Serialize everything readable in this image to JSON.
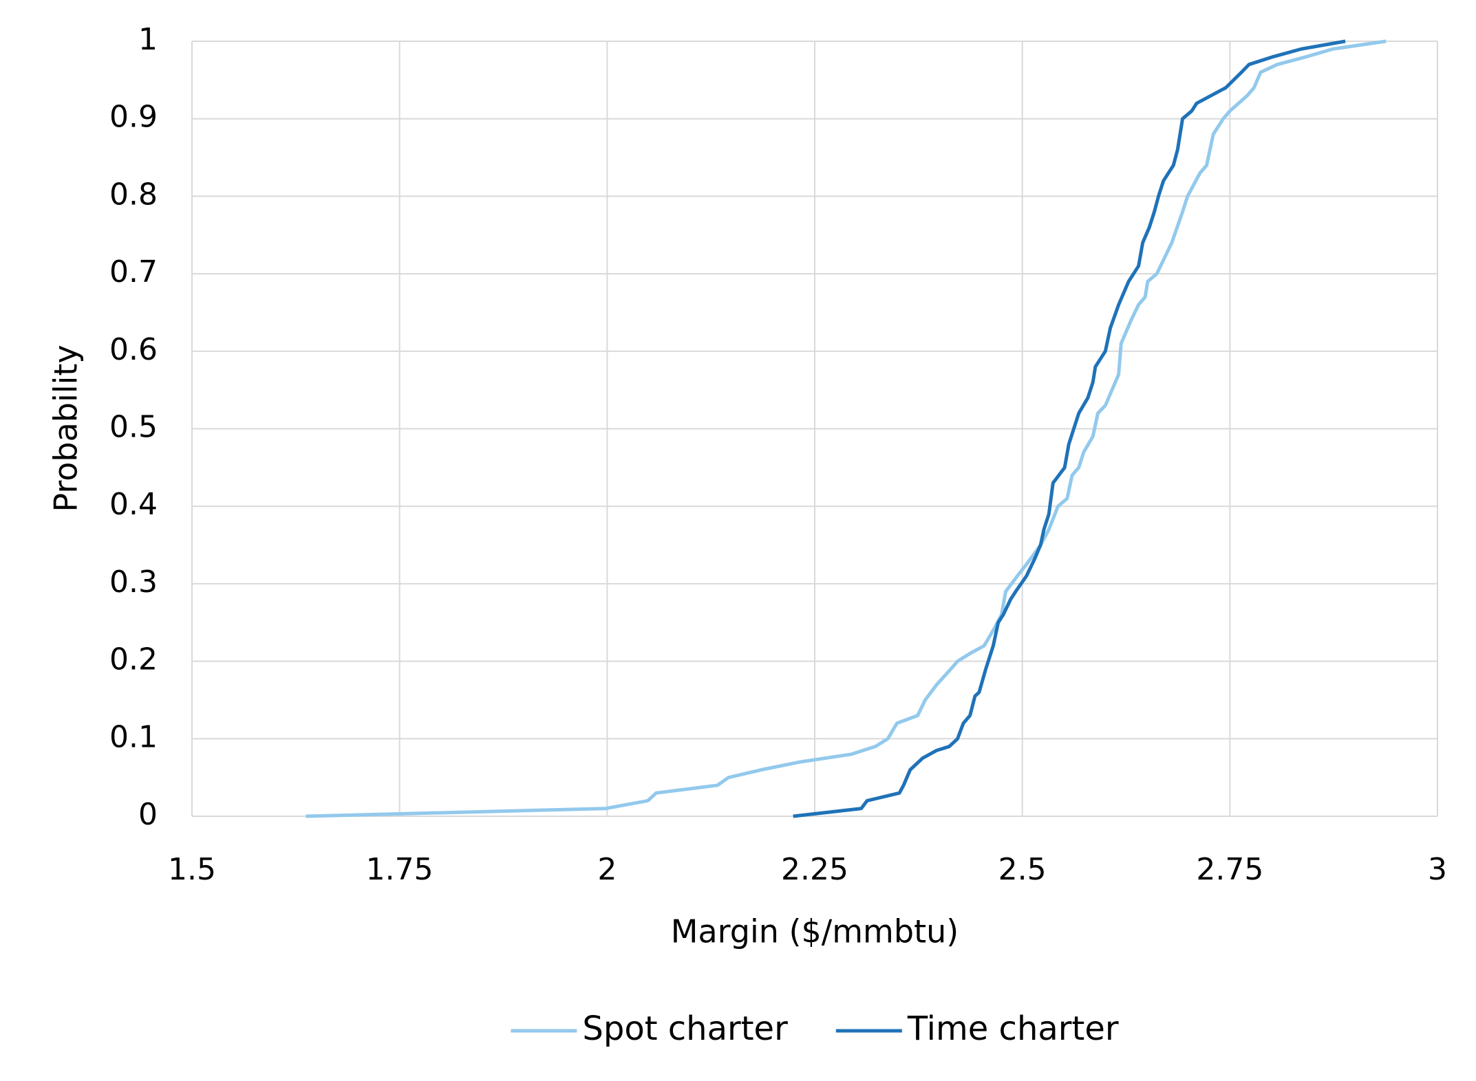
{
  "chart_data": {
    "type": "line",
    "x_label": "Margin ($/mmbtu)",
    "y_label": "Probability",
    "xlim": [
      1.5,
      3
    ],
    "xticks": [
      1.5,
      1.75,
      2,
      2.25,
      2.5,
      2.75,
      3
    ],
    "ylim": [
      0,
      1
    ],
    "yticks": [
      0,
      0.1,
      0.2,
      0.3,
      0.4,
      0.5,
      0.6,
      0.7,
      0.8,
      0.9,
      1
    ],
    "grid": true,
    "legend": "bottom",
    "series": [
      {
        "name": "Spot charter",
        "color": "#92c9ec",
        "x": [
          1.637,
          1.998,
          2.049,
          2.059,
          2.133,
          2.146,
          2.186,
          2.232,
          2.294,
          2.323,
          2.338,
          2.349,
          2.374,
          2.383,
          2.397,
          2.414,
          2.422,
          2.437,
          2.454,
          2.465,
          2.475,
          2.48,
          2.494,
          2.505,
          2.522,
          2.532,
          2.543,
          2.554,
          2.56,
          2.568,
          2.574,
          2.585,
          2.591,
          2.6,
          2.608,
          2.616,
          2.619,
          2.631,
          2.64,
          2.648,
          2.651,
          2.662,
          2.671,
          2.68,
          2.693,
          2.699,
          2.714,
          2.722,
          2.73,
          2.742,
          2.75,
          2.771,
          2.779,
          2.787,
          2.807,
          2.842,
          2.874,
          2.938
        ],
        "values": [
          0,
          0.01,
          0.02,
          0.03,
          0.04,
          0.05,
          0.06,
          0.07,
          0.08,
          0.09,
          0.1,
          0.12,
          0.13,
          0.15,
          0.17,
          0.19,
          0.2,
          0.21,
          0.22,
          0.24,
          0.26,
          0.29,
          0.31,
          0.325,
          0.35,
          0.37,
          0.4,
          0.41,
          0.44,
          0.45,
          0.47,
          0.49,
          0.52,
          0.53,
          0.55,
          0.57,
          0.61,
          0.64,
          0.66,
          0.67,
          0.69,
          0.7,
          0.72,
          0.74,
          0.78,
          0.8,
          0.83,
          0.84,
          0.88,
          0.9,
          0.91,
          0.93,
          0.94,
          0.96,
          0.97,
          0.98,
          0.99,
          1
        ]
      },
      {
        "name": "Time charter",
        "color": "#1f72b8",
        "x": [
          2.224,
          2.306,
          2.313,
          2.352,
          2.357,
          2.365,
          2.38,
          2.397,
          2.412,
          2.422,
          2.429,
          2.437,
          2.443,
          2.448,
          2.456,
          2.465,
          2.471,
          2.477,
          2.486,
          2.492,
          2.505,
          2.514,
          2.522,
          2.526,
          2.532,
          2.537,
          2.551,
          2.556,
          2.562,
          2.568,
          2.579,
          2.585,
          2.588,
          2.594,
          2.6,
          2.606,
          2.616,
          2.628,
          2.64,
          2.645,
          2.653,
          2.659,
          2.664,
          2.67,
          2.682,
          2.687,
          2.693,
          2.704,
          2.71,
          2.745,
          2.764,
          2.773,
          2.802,
          2.836,
          2.889
        ],
        "values": [
          0,
          0.01,
          0.02,
          0.03,
          0.04,
          0.06,
          0.075,
          0.085,
          0.09,
          0.1,
          0.12,
          0.13,
          0.155,
          0.16,
          0.19,
          0.22,
          0.25,
          0.26,
          0.28,
          0.29,
          0.31,
          0.33,
          0.35,
          0.37,
          0.39,
          0.43,
          0.45,
          0.48,
          0.5,
          0.52,
          0.54,
          0.56,
          0.58,
          0.59,
          0.6,
          0.63,
          0.66,
          0.69,
          0.71,
          0.74,
          0.76,
          0.78,
          0.8,
          0.82,
          0.84,
          0.86,
          0.9,
          0.91,
          0.92,
          0.94,
          0.96,
          0.97,
          0.98,
          0.99,
          1
        ]
      }
    ]
  }
}
